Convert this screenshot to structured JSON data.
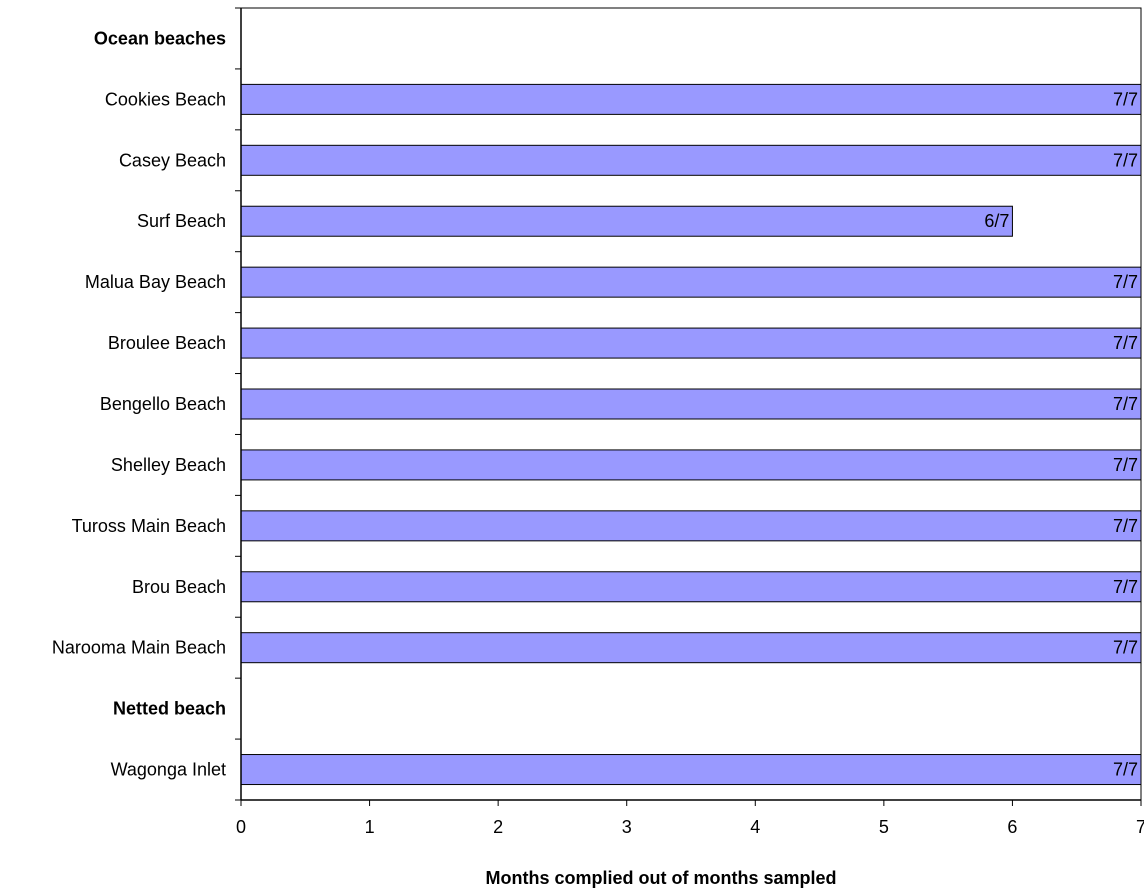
{
  "chart_data": {
    "type": "bar",
    "orientation": "horizontal",
    "categories": [
      {
        "label": "Ocean beaches",
        "bold": true
      },
      {
        "label": "Cookies Beach",
        "bold": false
      },
      {
        "label": "Casey Beach",
        "bold": false
      },
      {
        "label": "Surf Beach",
        "bold": false
      },
      {
        "label": "Malua Bay Beach",
        "bold": false
      },
      {
        "label": "Broulee Beach",
        "bold": false
      },
      {
        "label": "Bengello Beach",
        "bold": false
      },
      {
        "label": "Shelley Beach",
        "bold": false
      },
      {
        "label": "Tuross Main Beach",
        "bold": false
      },
      {
        "label": "Brou Beach",
        "bold": false
      },
      {
        "label": "Narooma Main Beach",
        "bold": false
      },
      {
        "label": "Netted beach",
        "bold": true
      },
      {
        "label": "Wagonga Inlet",
        "bold": false
      }
    ],
    "values": [
      null,
      7,
      7,
      6,
      7,
      7,
      7,
      7,
      7,
      7,
      7,
      null,
      7
    ],
    "data_labels": [
      "",
      "7/7",
      "7/7",
      "6/7",
      "7/7",
      "7/7",
      "7/7",
      "7/7",
      "7/7",
      "7/7",
      "7/7",
      "",
      "7/7"
    ],
    "xlabel": "Months complied out of months sampled",
    "ylabel": "",
    "title": "",
    "xlim": [
      0,
      7
    ],
    "xticks": [
      0,
      1,
      2,
      3,
      4,
      5,
      6,
      7
    ],
    "bar_color": "#9999FF",
    "grid": false,
    "legend": "none"
  }
}
